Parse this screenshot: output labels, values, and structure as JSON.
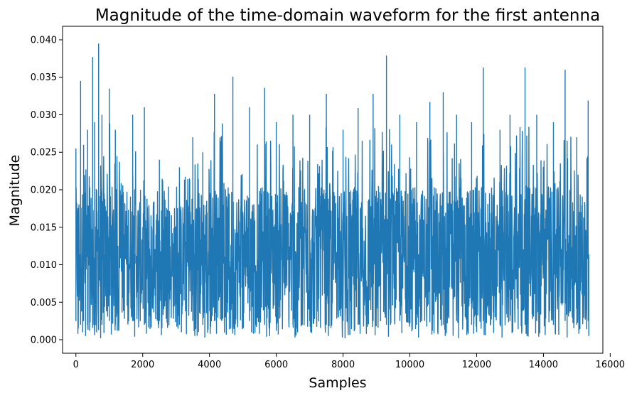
{
  "chart_data": {
    "type": "line",
    "title": "Magnitude of the time-domain waveform for the first antenna",
    "xlabel": "Samples",
    "ylabel": "Magnitude",
    "xlim": [
      -400,
      15780
    ],
    "ylim": [
      -0.0018,
      0.0418
    ],
    "xticks": [
      0,
      2000,
      4000,
      6000,
      8000,
      10000,
      12000,
      14000,
      16000
    ],
    "xtick_labels": [
      "0",
      "2000",
      "4000",
      "6000",
      "8000",
      "10000",
      "12000",
      "14000",
      "16000"
    ],
    "yticks": [
      0.0,
      0.005,
      0.01,
      0.015,
      0.02,
      0.025,
      0.03,
      0.035,
      0.04
    ],
    "ytick_labels": [
      "0.000",
      "0.005",
      "0.010",
      "0.015",
      "0.020",
      "0.025",
      "0.030",
      "0.035",
      "0.040"
    ],
    "grid": false,
    "series": [
      {
        "color": "#1f77b4",
        "n_samples": 15360,
        "x": [
          0,
          140,
          230,
          350,
          500,
          560,
          680,
          780,
          1000,
          1180,
          1700,
          2050,
          2500,
          3100,
          3500,
          3800,
          4150,
          4700,
          5200,
          5650,
          6000,
          6500,
          7000,
          7500,
          8000,
          8450,
          8900,
          9300,
          9700,
          10200,
          10600,
          11000,
          11400,
          11850,
          12200,
          12700,
          13000,
          13450,
          13800,
          14300,
          14650,
          15000,
          15340
        ],
        "peak": [
          0.0255,
          0.0345,
          0.026,
          0.028,
          0.0377,
          0.029,
          0.0395,
          0.03,
          0.0335,
          0.028,
          0.03,
          0.031,
          0.024,
          0.023,
          0.027,
          0.025,
          0.0328,
          0.0351,
          0.031,
          0.0336,
          0.029,
          0.03,
          0.03,
          0.0328,
          0.028,
          0.0309,
          0.0328,
          0.0379,
          0.03,
          0.029,
          0.0317,
          0.033,
          0.03,
          0.029,
          0.0363,
          0.028,
          0.03,
          0.0363,
          0.03,
          0.029,
          0.036,
          0.027,
          0.0319
        ],
        "upper": [
          0.019,
          0.019,
          0.019,
          0.019,
          0.019,
          0.019,
          0.019,
          0.019,
          0.019,
          0.019,
          0.019,
          0.0185,
          0.017,
          0.017,
          0.0185,
          0.019,
          0.019,
          0.019,
          0.019,
          0.019,
          0.019,
          0.019,
          0.019,
          0.019,
          0.019,
          0.019,
          0.019,
          0.019,
          0.019,
          0.019,
          0.019,
          0.019,
          0.019,
          0.019,
          0.019,
          0.019,
          0.019,
          0.019,
          0.019,
          0.019,
          0.019,
          0.019,
          0.019
        ],
        "lower": [
          0.0025,
          0.002,
          0.0025,
          0.002,
          0.0025,
          0.002,
          0.0025,
          0.002,
          0.0025,
          0.002,
          0.0025,
          0.002,
          0.0025,
          0.002,
          0.0025,
          0.002,
          0.0025,
          0.002,
          0.0025,
          0.002,
          0.0025,
          0.002,
          0.0025,
          0.002,
          0.0025,
          0.002,
          0.0025,
          0.002,
          0.0025,
          0.002,
          0.0025,
          0.002,
          0.0025,
          0.002,
          0.0025,
          0.002,
          0.0025,
          0.002,
          0.0025,
          0.002,
          0.0025,
          0.002,
          0.0025
        ],
        "trough": [
          0.0008,
          0.001,
          0.0005,
          0.0012,
          0.0006,
          0.001,
          0.0002,
          0.0009,
          0.0007,
          0.0012,
          0.0004,
          0.0008,
          0.0006,
          0.001,
          0.0005,
          0.0003,
          0.0008,
          0.0006,
          0.001,
          0.0004,
          0.0007,
          0.0003,
          0.0009,
          0.0005,
          0.0002,
          0.0008,
          0.0006,
          0.0004,
          0.0009,
          0.0003,
          0.0007,
          0.0005,
          0.0002,
          0.0008,
          0.0006,
          0.0003,
          0.0009,
          0.0005,
          0.0004,
          0.0007,
          0.0003,
          0.0008,
          0.0005
        ]
      }
    ]
  }
}
